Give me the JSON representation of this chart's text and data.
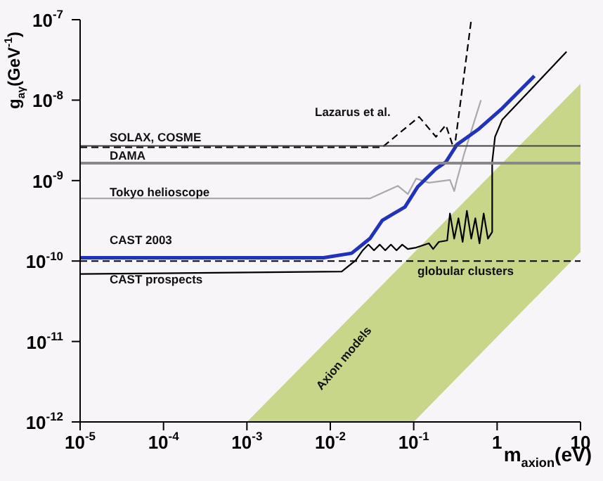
{
  "chart_data": {
    "type": "line",
    "xlabel": "m$_{axion}$(eV)",
    "ylabel": "g$_{aγ}$(GeV$^{-1}$)",
    "log": "xy",
    "xlim": [
      1e-05,
      10
    ],
    "ylim": [
      1e-12,
      1e-07
    ],
    "xticks": [
      {
        "value": 1e-05,
        "label": "10$^{-5}$"
      },
      {
        "value": 0.0001,
        "label": "10$^{-4}$"
      },
      {
        "value": 0.001,
        "label": "10$^{-3}$"
      },
      {
        "value": 0.01,
        "label": "10$^{-2}$"
      },
      {
        "value": 0.1,
        "label": "10$^{-1}$"
      },
      1,
      10
    ],
    "yticks": [
      {
        "value": 1e-12,
        "label": "10$^{-12}$"
      },
      {
        "value": 1e-11,
        "label": "10$^{-11}$"
      },
      {
        "value": 1e-10,
        "label": "10$^{-10}$"
      },
      {
        "value": 1e-09,
        "label": "10$^{-9}$"
      },
      {
        "value": 1e-08,
        "label": "10$^{-8}$"
      },
      {
        "value": 1e-07,
        "label": "10$^{-7}$"
      }
    ],
    "marker": "none",
    "series": [
      {
        "type": "area",
        "color": "#c8d68a",
        "x": [
          0.001,
          0.1,
          10
        ],
        "values": [
          null,
          null,
          null
        ],
        "lower": [
          1e-12,
          1e-12,
          1.3e-10
        ],
        "upper": [
          1e-12,
          1.26e-10,
          1.6e-08
        ]
      },
      {
        "color": "#000000",
        "line_style": "dashed",
        "x": [
          1e-05,
          0.042,
          0.116,
          0.185,
          0.243,
          0.306,
          0.49
        ],
        "values": [
          2.6e-09,
          2.6e-09,
          6.2e-09,
          3.5e-09,
          4.9e-09,
          2.4e-09,
          1e-07
        ]
      },
      {
        "color": "#aaaaaa",
        "line_style": "solid",
        "x": [
          1e-05,
          0.0298,
          0.0647,
          0.085,
          0.107,
          0.152,
          0.272,
          0.306,
          0.33,
          0.4,
          0.64
        ],
        "values": [
          6e-10,
          6e-10,
          8.6e-10,
          6.8e-10,
          1.06e-09,
          9.4e-10,
          1.02e-09,
          7.4e-10,
          1.02e-09,
          2.1e-09,
          1e-08
        ]
      },
      {
        "color": "#2233bb",
        "line_style": "solid",
        "x": [
          1e-05,
          0.0083,
          0.018,
          0.0298,
          0.042,
          0.0577,
          0.0785,
          0.111,
          0.185,
          0.243,
          0.33,
          0.59,
          1.15,
          2.8
        ],
        "values": [
          1.1e-10,
          1.1e-10,
          1.25e-10,
          1.9e-10,
          3.2e-10,
          3.9e-10,
          4.7e-10,
          8.3e-10,
          1.4e-09,
          1.7e-09,
          2.8e-09,
          4.3e-09,
          7.9e-09,
          2e-08
        ]
      },
      {
        "color": "#000000",
        "line_style": "solid",
        "x": [
          1e-05,
          0.0137,
          0.0202,
          0.0245,
          0.0286,
          0.0334,
          0.0391,
          0.0456,
          0.0533,
          0.0622,
          0.0728,
          0.0849,
          0.107,
          0.152,
          0.171,
          0.2,
          0.252,
          0.272,
          0.306,
          0.344,
          0.386,
          0.434,
          0.49,
          0.548,
          0.615,
          0.69,
          0.776,
          0.873,
          0.873,
          0.944,
          1.15,
          6.8
        ],
        "values": [
          6.9e-11,
          7.4e-11,
          1.02e-10,
          1.36e-10,
          1.6e-10,
          1.36e-10,
          1.6e-10,
          1.36e-10,
          1.6e-10,
          1.36e-10,
          1.6e-10,
          1.41e-10,
          1.47e-10,
          1.66e-10,
          1.41e-10,
          1.73e-10,
          1.8e-10,
          3.9e-10,
          1.9e-10,
          3.4e-10,
          1.73e-10,
          4.2e-10,
          1.9e-10,
          3.4e-10,
          1.66e-10,
          3.9e-10,
          1.9e-10,
          2.3e-10,
          1.7e-09,
          3.5e-09,
          5.7e-09,
          4e-08
        ]
      }
    ],
    "ref_lines": [
      {
        "axis": "y",
        "value": 2.7e-09,
        "color": "#444444",
        "line_style": "solid"
      },
      {
        "axis": "y",
        "value": 1.65e-09,
        "color": "#888888",
        "line_style": "solid"
      },
      {
        "axis": "y",
        "value": 1e-10,
        "color": "#000000",
        "line_style": "dashed"
      }
    ],
    "annotations": [
      "SOLAX, COSME",
      "DAMA",
      "Tokyo helioscope",
      "CAST 2003",
      "CAST prospects",
      "Lazarus et al.",
      "globular clusters",
      "Axion models"
    ]
  }
}
